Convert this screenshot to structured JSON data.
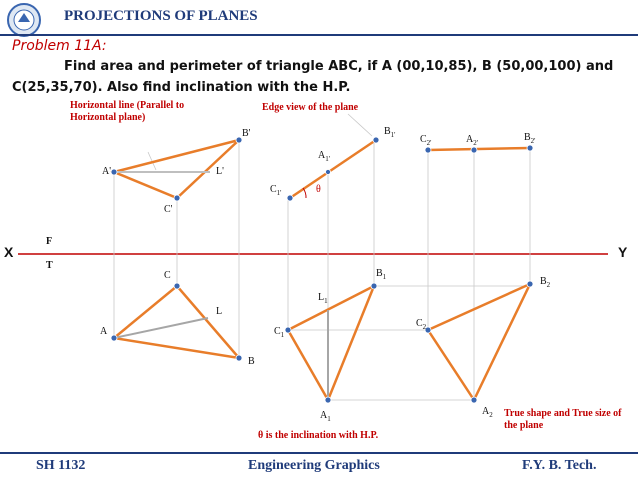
{
  "header": {
    "title": "PROJECTIONS OF PLANES"
  },
  "problem": {
    "label": "Problem 11A:",
    "statement": "Find area and perimeter of triangle ABC, if A (00,10,85), B (50,00,100) and C(25,35,70). Also find inclination with the H.P."
  },
  "notes": {
    "horizontal_line": "Horizontal line (Parallel to Horizontal plane)",
    "edge_view": "Edge view of the plane",
    "true_shape": "True shape and True size of the plane",
    "theta_note": "θ  is the inclination with H.P."
  },
  "labels": {
    "x": "X",
    "y": "Y",
    "f": "F",
    "t": "T",
    "a_front": "A'",
    "b_front": "B'",
    "c_front": "C'",
    "l_front": "L'",
    "a_top": "A",
    "b_top": "B",
    "c_top": "C",
    "l_top": "L",
    "a1_front": "A",
    "a1_front_sub": "1'",
    "b1_front": "B",
    "b1_front_sub": "1'",
    "c1_front": "C",
    "c1_front_sub": "1'",
    "a1_top": "A",
    "a1_top_sub": "1",
    "b1_top": "B",
    "b1_top_sub": "1",
    "c1_top": "C",
    "c1_top_sub": "1",
    "l1_top": "L",
    "l1_top_sub": "1",
    "a2_front": "A",
    "a2_front_sub": "2'",
    "b2_front": "B",
    "b2_front_sub": "2'",
    "c2_front": "C",
    "c2_front_sub": "2'",
    "a2_top": "A",
    "a2_top_sub": "2",
    "b2_top": "B",
    "b2_top_sub": "2",
    "c2_top": "C",
    "c2_top_sub": "2",
    "theta": "θ"
  },
  "footer": {
    "left": "SH 1132",
    "center": "Engineering Graphics",
    "right": "F.Y.  B. Tech."
  },
  "colors": {
    "accent": "#e87d2a",
    "title": "#1f3b7a",
    "note": "#c00000",
    "point": "#3a66b0"
  }
}
